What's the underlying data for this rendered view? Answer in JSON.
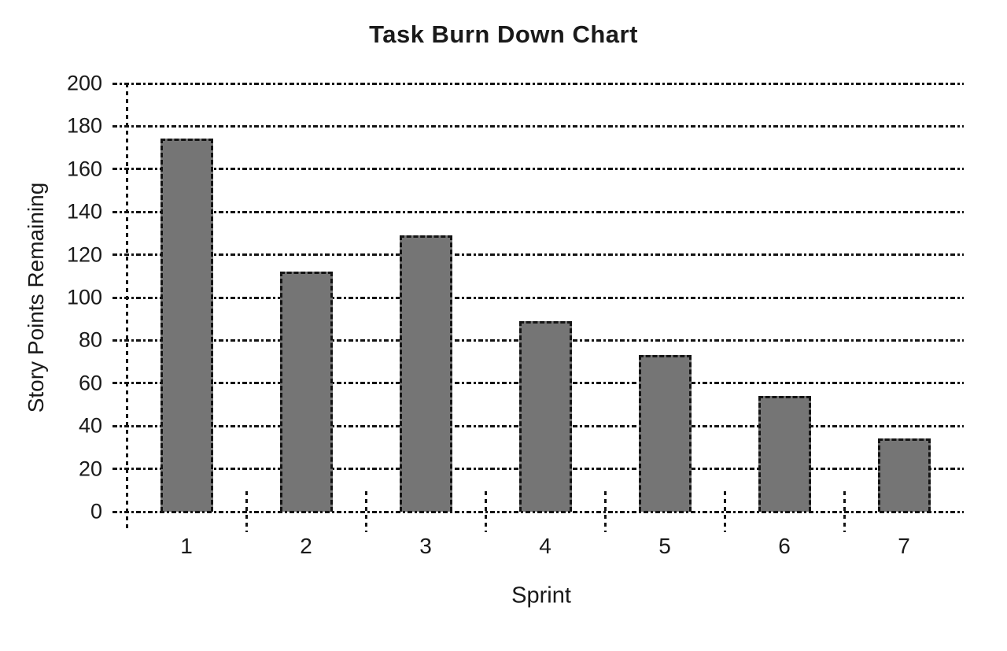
{
  "chart_data": {
    "type": "bar",
    "title": "Task Burn Down Chart",
    "xlabel": "Sprint",
    "ylabel": "Story Points Remaining",
    "categories": [
      "1",
      "2",
      "3",
      "4",
      "5",
      "6",
      "7"
    ],
    "values": [
      173,
      111,
      128,
      88,
      72,
      53,
      33
    ],
    "ylim": [
      0,
      200
    ],
    "ytick_step": 20,
    "grid": "dotted horizontal gridlines at every y tick, dotted vertical y-axis line, dashed category boundary ticks crossing the baseline",
    "legend": "none",
    "bar_color": "#757575",
    "line_color": "#141414",
    "bar_border_style": "dashed"
  }
}
